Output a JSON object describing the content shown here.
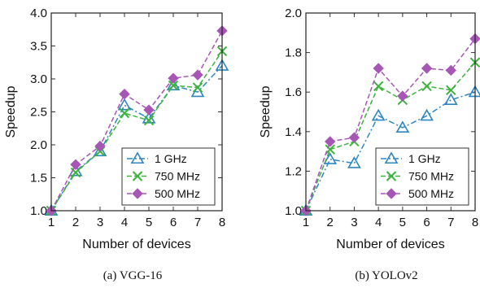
{
  "chart_data": [
    {
      "type": "line",
      "caption": "(a) VGG-16",
      "xlabel": "Number of devices",
      "ylabel": "Speedup",
      "x": [
        1,
        2,
        3,
        4,
        5,
        6,
        7,
        8
      ],
      "xticks": [
        "1",
        "2",
        "3",
        "4",
        "5",
        "6",
        "7",
        "8"
      ],
      "ylim": [
        1.0,
        4.0
      ],
      "yticks": [
        "1.0",
        "1.5",
        "2.0",
        "2.5",
        "3.0",
        "3.5",
        "4.0"
      ],
      "legend_position": "lower-right",
      "series": [
        {
          "name": "1 GHz",
          "color": "#2E86C1",
          "marker": "triangle",
          "dash": "dashdot",
          "values": [
            1.0,
            1.6,
            1.9,
            2.6,
            2.4,
            2.9,
            2.8,
            3.2
          ]
        },
        {
          "name": "750 MHz",
          "color": "#3CB33C",
          "marker": "x",
          "dash": "dashed",
          "values": [
            1.0,
            1.58,
            1.9,
            2.48,
            2.37,
            2.9,
            2.87,
            3.42
          ]
        },
        {
          "name": "500 MHz",
          "color": "#A657B5",
          "marker": "diamond",
          "dash": "dashed",
          "values": [
            1.0,
            1.7,
            1.98,
            2.77,
            2.53,
            3.01,
            3.06,
            3.73
          ]
        }
      ]
    },
    {
      "type": "line",
      "caption": "(b) YOLOv2",
      "xlabel": "Number of devices",
      "ylabel": "Speedup",
      "x": [
        1,
        2,
        3,
        4,
        5,
        6,
        7,
        8
      ],
      "xticks": [
        "1",
        "2",
        "3",
        "4",
        "5",
        "6",
        "7",
        "8"
      ],
      "ylim": [
        1.0,
        2.0
      ],
      "yticks": [
        "1.0",
        "1.2",
        "1.4",
        "1.6",
        "1.8",
        "2.0"
      ],
      "legend_position": "lower-right",
      "series": [
        {
          "name": "1 GHz",
          "color": "#2E86C1",
          "marker": "triangle",
          "dash": "dashdot",
          "values": [
            1.0,
            1.26,
            1.24,
            1.48,
            1.42,
            1.48,
            1.56,
            1.6
          ]
        },
        {
          "name": "750 MHz",
          "color": "#3CB33C",
          "marker": "x",
          "dash": "dashed",
          "values": [
            1.0,
            1.31,
            1.35,
            1.63,
            1.56,
            1.63,
            1.61,
            1.75
          ]
        },
        {
          "name": "500 MHz",
          "color": "#A657B5",
          "marker": "diamond",
          "dash": "dashed",
          "values": [
            1.0,
            1.35,
            1.37,
            1.72,
            1.58,
            1.72,
            1.71,
            1.87
          ]
        }
      ]
    }
  ]
}
